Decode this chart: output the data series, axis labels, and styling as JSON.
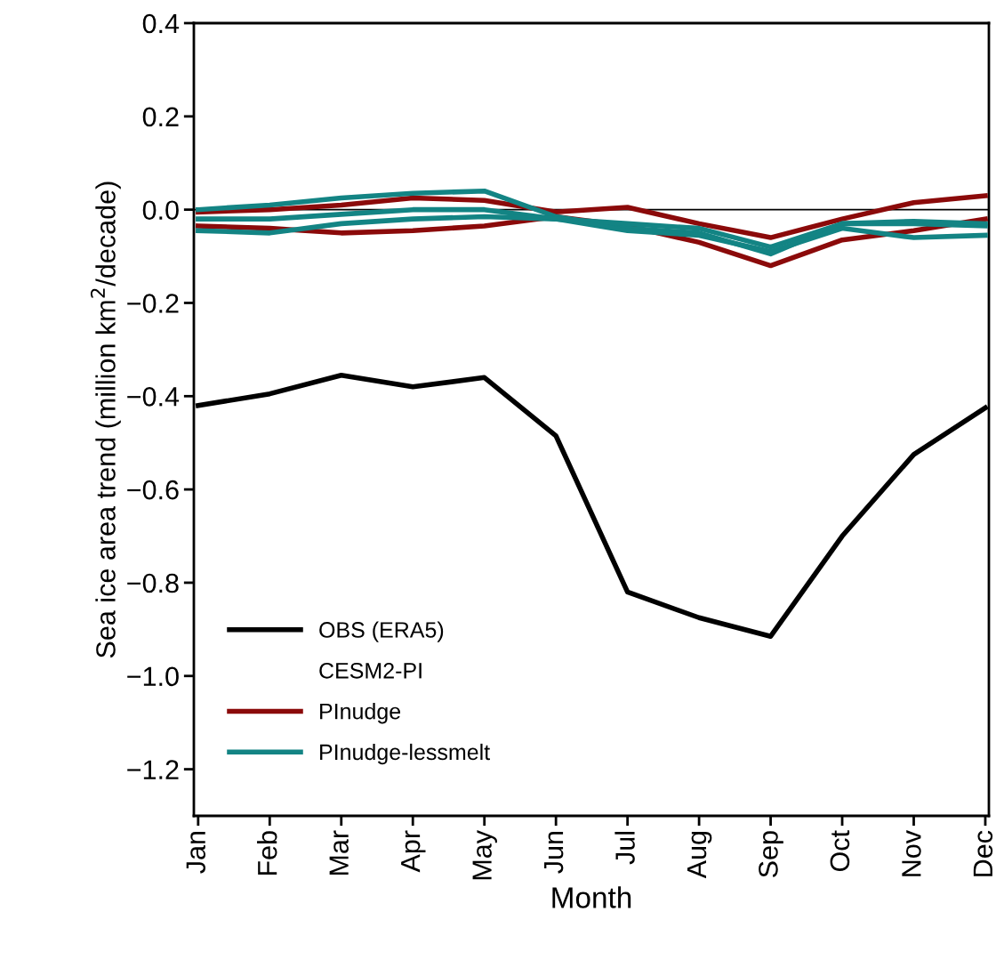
{
  "chart_data": {
    "type": "line",
    "xlabel": "Month",
    "ylabel": "Sea ice area trend (million km$^{2}$/decade)",
    "categories": [
      "Jan",
      "Feb",
      "Mar",
      "Apr",
      "May",
      "Jun",
      "Jul",
      "Aug",
      "Sep",
      "Oct",
      "Nov",
      "Dec"
    ],
    "series": [
      {
        "name": "OBS (ERA5)",
        "color": "#000000",
        "values": [
          -0.42,
          -0.395,
          -0.355,
          -0.38,
          -0.36,
          -0.485,
          -0.82,
          -0.875,
          -0.915,
          -0.7,
          -0.525,
          -0.425
        ]
      },
      {
        "name": "PInudge",
        "color": "#8b0a0a",
        "values": [
          -0.005,
          0.0,
          0.01,
          0.025,
          0.02,
          -0.005,
          0.005,
          -0.03,
          -0.06,
          -0.02,
          0.015,
          0.03
        ]
      },
      {
        "color": "#8b0a0a",
        "values": [
          -0.035,
          -0.04,
          -0.05,
          -0.045,
          -0.035,
          -0.015,
          -0.035,
          -0.07,
          -0.12,
          -0.065,
          -0.045,
          -0.02
        ]
      },
      {
        "name": "PInudge-lessmelt",
        "color": "#138484",
        "values": [
          0.0,
          0.01,
          0.025,
          0.035,
          0.04,
          -0.015,
          -0.04,
          -0.05,
          -0.095,
          -0.03,
          -0.03,
          -0.035
        ]
      },
      {
        "color": "#138484",
        "values": [
          -0.02,
          -0.02,
          -0.01,
          0.0,
          0.0,
          -0.02,
          -0.03,
          -0.04,
          -0.08,
          -0.03,
          -0.025,
          -0.03
        ]
      },
      {
        "color": "#138484",
        "values": [
          -0.045,
          -0.05,
          -0.03,
          -0.02,
          -0.015,
          -0.02,
          -0.045,
          -0.055,
          -0.09,
          -0.04,
          -0.06,
          -0.055
        ]
      }
    ],
    "annotations": [
      "CESM2-PI"
    ],
    "ylim": [
      -1.3,
      0.4
    ],
    "yticks": [
      {
        "value": -1.2,
        "label": "−1.2"
      },
      {
        "value": -1.0,
        "label": "−1.0"
      },
      {
        "value": -0.8,
        "label": "−0.8"
      },
      {
        "value": -0.6,
        "label": "−0.6"
      },
      {
        "value": -0.4,
        "label": "−0.4"
      },
      {
        "value": -0.2,
        "label": "−0.2"
      },
      {
        "value": 0.0,
        "label": "0.0"
      },
      {
        "value": 0.2,
        "label": "0.2"
      },
      {
        "value": 0.4,
        "label": "0.4"
      }
    ],
    "ref_lines": [
      {
        "axis": "y",
        "value": 0,
        "color": "#000000"
      }
    ],
    "legend": "bottom left",
    "grid": false,
    "marker": "none",
    "line_style": "solid"
  }
}
